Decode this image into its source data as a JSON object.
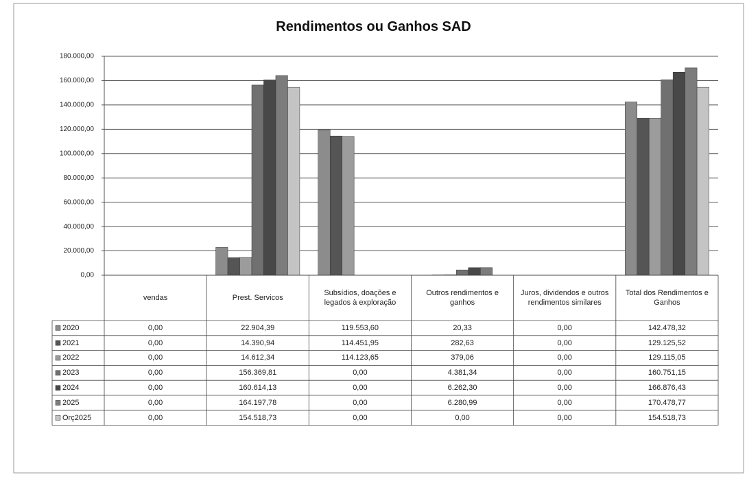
{
  "chart_data": {
    "type": "bar",
    "title": "Rendimentos ou Ganhos  SAD",
    "categories": [
      "vendas",
      "Prest. Servicos",
      "Subsídios, doações e legados à exploração",
      "Outros rendimentos e ganhos",
      "Juros, dividendos e outros rendimentos similares",
      "Total dos Rendimentos e Ganhos"
    ],
    "series": [
      {
        "name": "2020",
        "color": "#8c8c8c",
        "values": [
          0,
          22904.39,
          119553.6,
          20.33,
          0,
          142478.32
        ],
        "value_labels": [
          "0,00",
          "22.904,39",
          "119.553,60",
          "20,33",
          "0,00",
          "142.478,32"
        ]
      },
      {
        "name": "2021",
        "color": "#555555",
        "values": [
          0,
          14390.94,
          114451.95,
          282.63,
          0,
          129125.52
        ],
        "value_labels": [
          "0,00",
          "14.390,94",
          "114.451,95",
          "282,63",
          "0,00",
          "129.125,52"
        ]
      },
      {
        "name": "2022",
        "color": "#9c9c9c",
        "values": [
          0,
          14612.34,
          114123.65,
          379.06,
          0,
          129115.05
        ],
        "value_labels": [
          "0,00",
          "14.612,34",
          "114.123,65",
          "379,06",
          "0,00",
          "129.115,05"
        ]
      },
      {
        "name": "2023",
        "color": "#707070",
        "values": [
          0,
          156369.81,
          0,
          4381.34,
          0,
          160751.15
        ],
        "value_labels": [
          "0,00",
          "156.369,81",
          "0,00",
          "4.381,34",
          "0,00",
          "160.751,15"
        ]
      },
      {
        "name": "2024",
        "color": "#484848",
        "values": [
          0,
          160614.13,
          0,
          6262.3,
          0,
          166876.43
        ],
        "value_labels": [
          "0,00",
          "160.614,13",
          "0,00",
          "6.262,30",
          "0,00",
          "166.876,43"
        ]
      },
      {
        "name": "2025",
        "color": "#7c7c7c",
        "values": [
          0,
          164197.78,
          0,
          6280.99,
          0,
          170478.77
        ],
        "value_labels": [
          "0,00",
          "164.197,78",
          "0,00",
          "6.280,99",
          "0,00",
          "170.478,77"
        ]
      },
      {
        "name": "Orç2025",
        "color": "#c4c4c4",
        "values": [
          0,
          154518.73,
          0,
          0,
          0,
          154518.73
        ],
        "value_labels": [
          "0,00",
          "154.518,73",
          "0,00",
          "0,00",
          "0,00",
          "154.518,73"
        ]
      }
    ],
    "ylim": [
      0,
      180000
    ],
    "yticks": [
      {
        "value": 0,
        "label": "0,00"
      },
      {
        "value": 20000,
        "label": "20.000,00"
      },
      {
        "value": 40000,
        "label": "40.000,00"
      },
      {
        "value": 60000,
        "label": "60.000,00"
      },
      {
        "value": 80000,
        "label": "80.000,00"
      },
      {
        "value": 100000,
        "label": "100.000,00"
      },
      {
        "value": 120000,
        "label": "120.000,00"
      },
      {
        "value": 140000,
        "label": "140.000,00"
      },
      {
        "value": 160000,
        "label": "160.000,00"
      },
      {
        "value": 180000,
        "label": "180.000,00"
      }
    ],
    "grid": true
  }
}
